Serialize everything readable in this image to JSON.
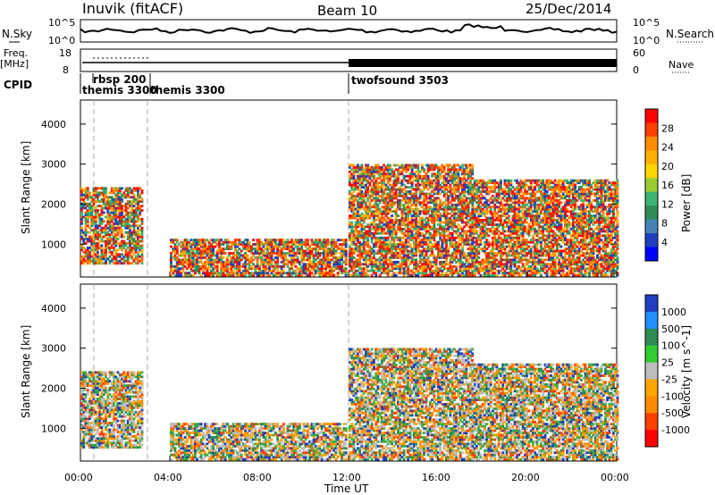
{
  "header": {
    "station": "Inuvik (fitACF)",
    "beam": "Beam 10",
    "date": "25/Dec/2014"
  },
  "nsky_panel": {
    "label": "N.Sky",
    "ticks": [
      "10^5",
      "10^0"
    ],
    "right_ticks": [
      "10^5",
      "10^0"
    ],
    "right_label": "N.Search"
  },
  "freq_panel": {
    "label": "Freq.",
    "unit": "[MHz]",
    "ticks": [
      "18",
      "8"
    ],
    "right_ticks": [
      "60",
      "0"
    ],
    "right_label": "Nave"
  },
  "cpid": {
    "label": "CPID",
    "segments": [
      "rbsp 200",
      "themis 3300",
      "themis 3300",
      "twofsound 3503"
    ]
  },
  "x_axis": {
    "label": "Time UT",
    "ticks": [
      "00:00",
      "04:00",
      "08:00",
      "12:00",
      "16:00",
      "20:00",
      "00:00"
    ]
  },
  "colors": {
    "red": "#ff0000",
    "orange": "#ff8c00",
    "yellow": "#ffd000",
    "green": "#3cb043",
    "teal": "#2e8b6e",
    "blue": "#1f3fbf",
    "gray": "#bdbdbd"
  },
  "chart_data": [
    {
      "type": "heatmap",
      "name": "power",
      "ylabel": "Slant Range [km]",
      "yticks": [
        "4000",
        "3000",
        "2000",
        "1000"
      ],
      "ylim": [
        180,
        4600
      ],
      "xlim_hours": [
        0,
        24
      ],
      "colorbar": {
        "label": "Power [dB]",
        "ticks": [
          "28",
          "24",
          "20",
          "16",
          "12",
          "8",
          "4"
        ],
        "colors": [
          "#ff0000",
          "#ff4000",
          "#ff8c00",
          "#ffb000",
          "#ffd700",
          "#9acd32",
          "#3cb371",
          "#2e8b57",
          "#4682b4",
          "#1f3fbf",
          "#0000ff"
        ]
      },
      "regions": [
        {
          "t": [
            0.0,
            2.7
          ],
          "r": [
            500,
            2400
          ],
          "level": "high"
        },
        {
          "t": [
            4.0,
            11.9
          ],
          "r": [
            200,
            1100
          ],
          "level": "mixed"
        },
        {
          "t": [
            12.0,
            17.5
          ],
          "r": [
            200,
            3000
          ],
          "level": "mixed"
        },
        {
          "t": [
            17.5,
            24.0
          ],
          "r": [
            200,
            2600
          ],
          "level": "high"
        }
      ]
    },
    {
      "type": "heatmap",
      "name": "velocity",
      "ylabel": "Slant Range [km]",
      "yticks": [
        "4000",
        "3000",
        "2000",
        "1000"
      ],
      "ylim": [
        180,
        4600
      ],
      "xlim_hours": [
        0,
        24
      ],
      "colorbar": {
        "label": "Velocity [m s^-1]",
        "ticks": [
          "1000",
          "500",
          "100",
          "25",
          "-25",
          "-100",
          "-500",
          "-1000"
        ],
        "colors": [
          "#1f3fbf",
          "#1e90ff",
          "#2e8b57",
          "#32cd32",
          "#bdbdbd",
          "#ffa500",
          "#ff8c00",
          "#ff4000",
          "#ff0000"
        ]
      },
      "regions": [
        {
          "t": [
            0.0,
            2.7
          ],
          "r": [
            500,
            2400
          ],
          "level": "negative"
        },
        {
          "t": [
            4.0,
            11.9
          ],
          "r": [
            200,
            1100
          ],
          "level": "near-zero"
        },
        {
          "t": [
            12.0,
            17.5
          ],
          "r": [
            200,
            3000
          ],
          "level": "mixed"
        },
        {
          "t": [
            17.5,
            24.0
          ],
          "r": [
            200,
            2600
          ],
          "level": "negative"
        }
      ]
    }
  ]
}
